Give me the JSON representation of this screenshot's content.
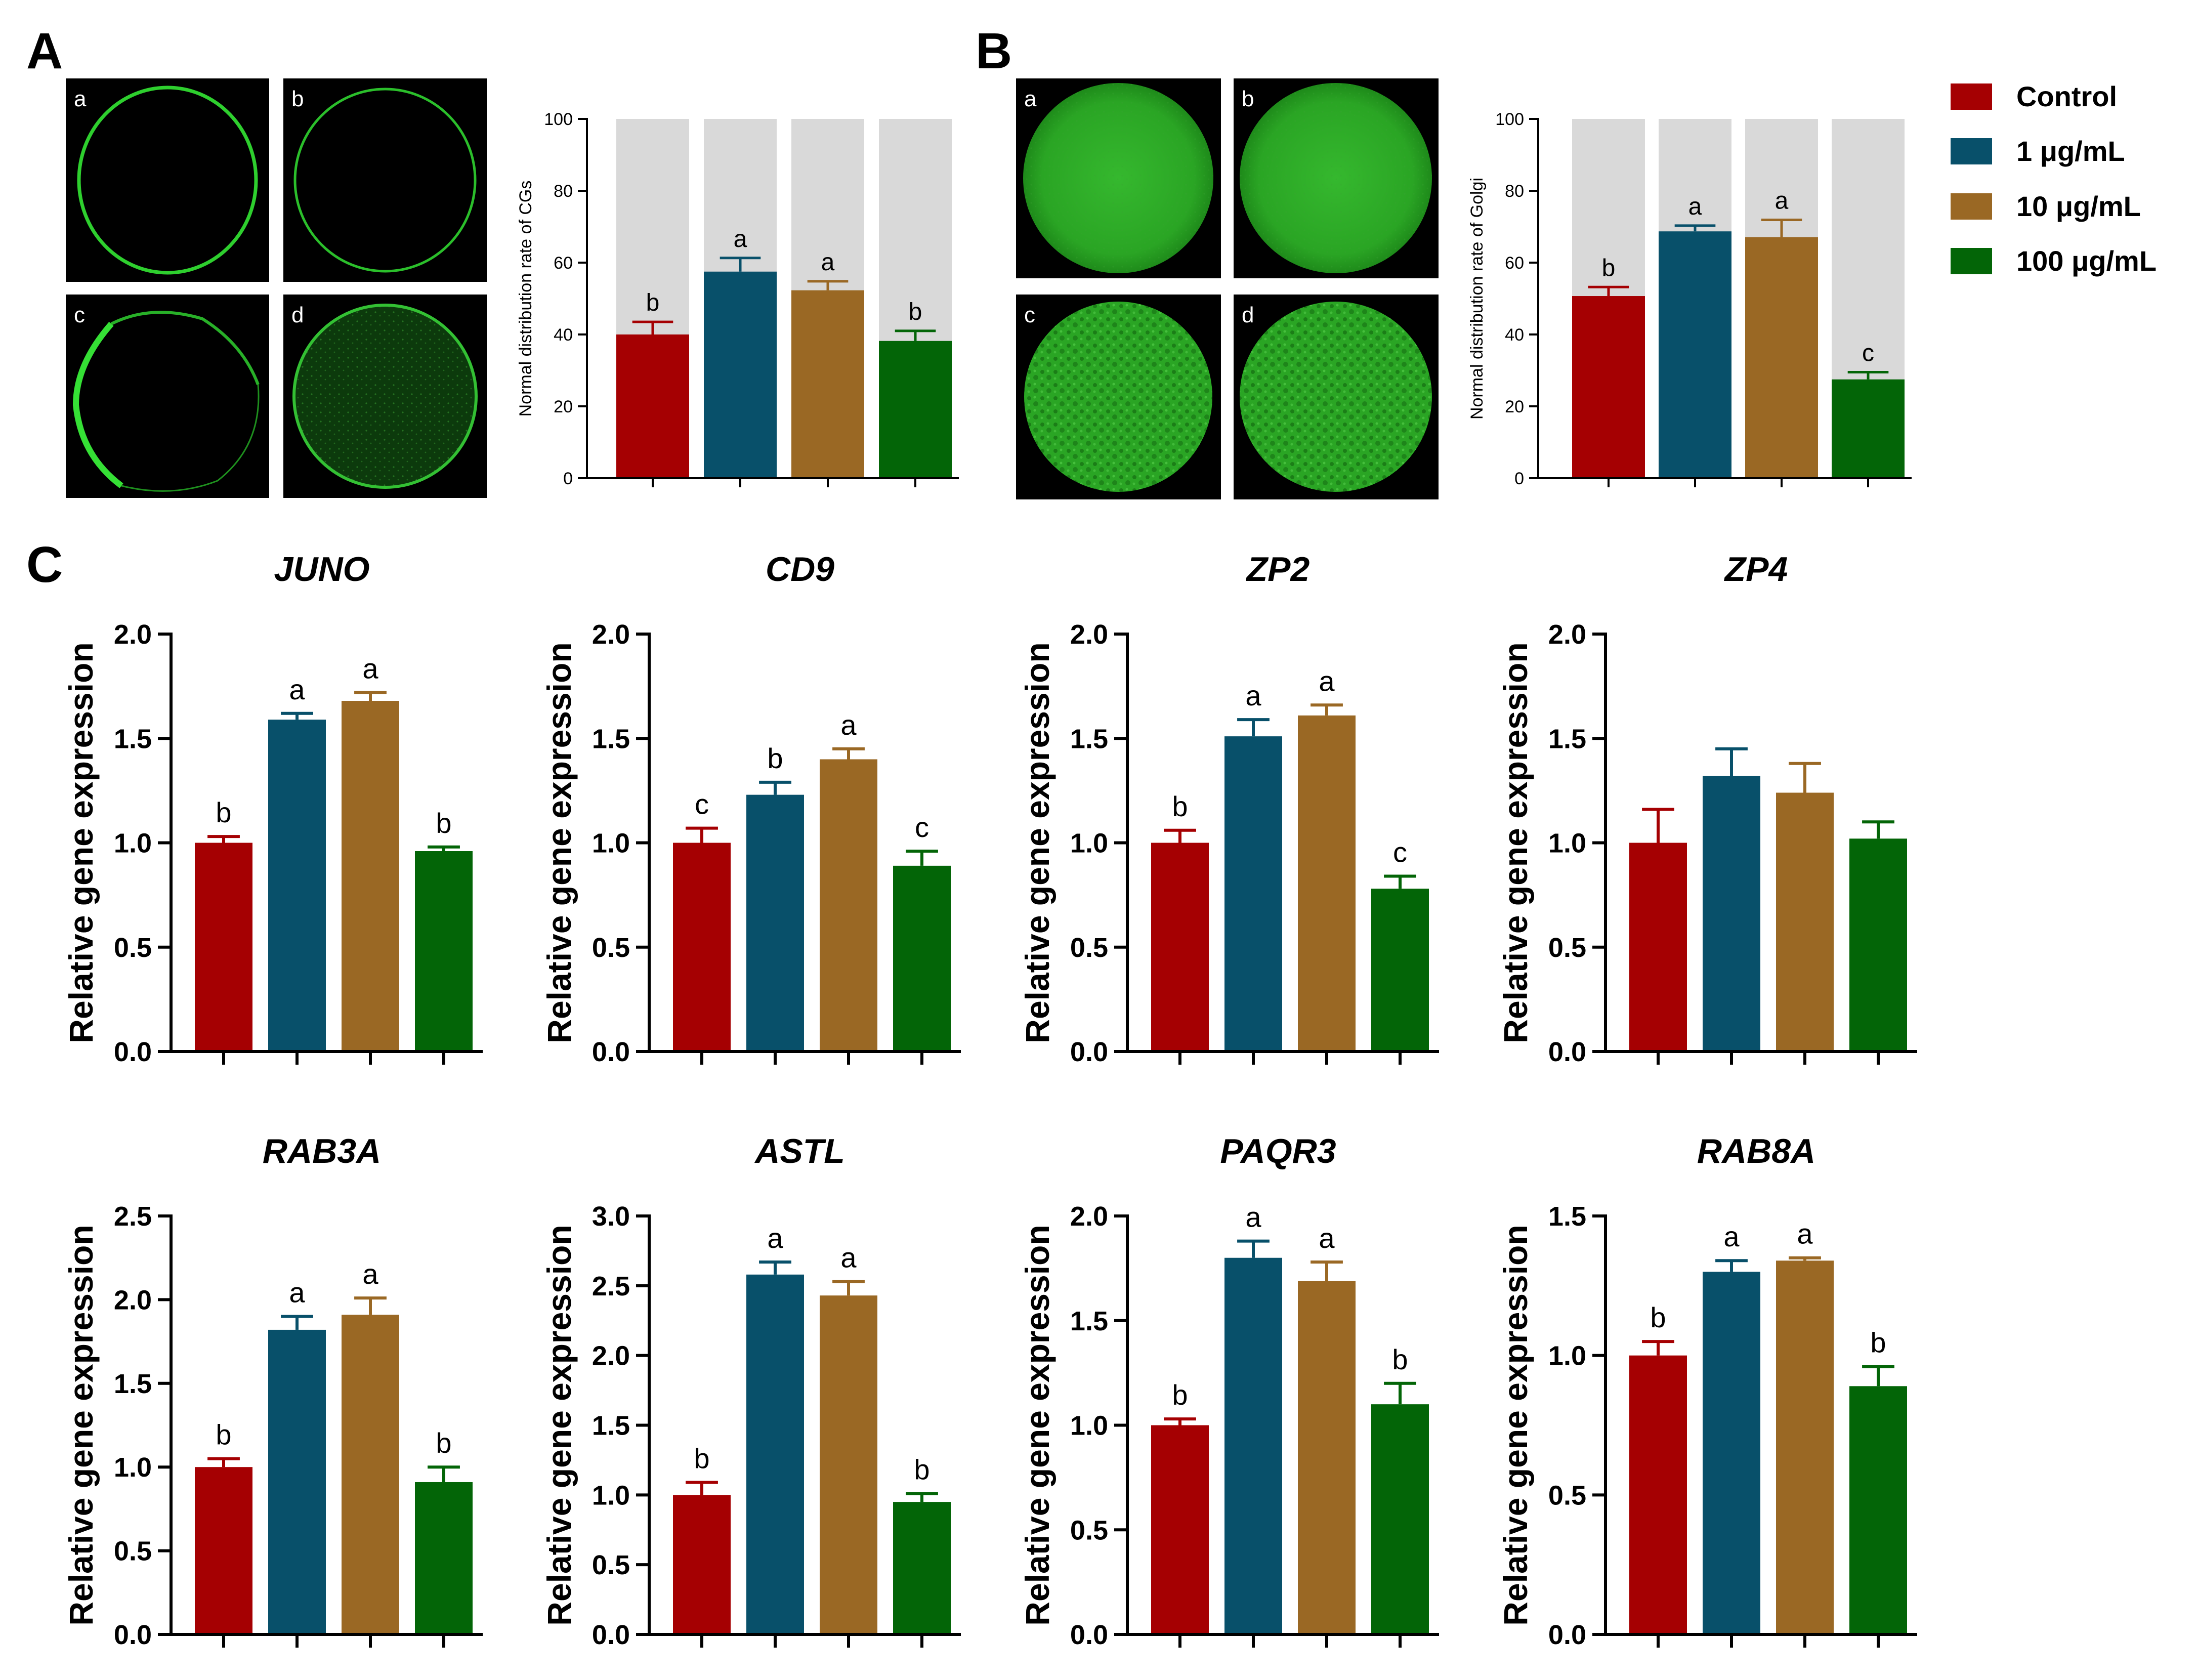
{
  "panels": {
    "a": "A",
    "b": "B",
    "c": "C"
  },
  "image_labels": [
    "a",
    "b",
    "c",
    "d"
  ],
  "legend": [
    {
      "label": "Control",
      "color": "#a50002"
    },
    {
      "label": "1 μg/mL",
      "color": "#08506a"
    },
    {
      "label": "10 μg/mL",
      "color": "#9a6824"
    },
    {
      "label": "100 μg/mL",
      "color": "#036507"
    }
  ],
  "chart_data": [
    {
      "id": "A",
      "type": "bar",
      "title": "",
      "ylabel": "Normal distribution rate of CGs",
      "ylim": [
        0,
        100
      ],
      "yticks": [
        0,
        20,
        40,
        60,
        80,
        100
      ],
      "categories": [
        "Control",
        "1 μg/mL",
        "10 μg/mL",
        "100 μg/mL"
      ],
      "background_to": 100,
      "values": [
        40,
        57.5,
        52.3,
        38.2
      ],
      "errors": [
        3.5,
        3.8,
        2.5,
        2.8
      ],
      "letters": [
        "b",
        "a",
        "a",
        "b"
      ]
    },
    {
      "id": "B",
      "type": "bar",
      "title": "",
      "ylabel": "Normal distribution rate of Golgi",
      "ylim": [
        0,
        100
      ],
      "yticks": [
        0,
        20,
        40,
        60,
        80,
        100
      ],
      "categories": [
        "Control",
        "1 μg/mL",
        "10 μg/mL",
        "100 μg/mL"
      ],
      "background_to": 100,
      "values": [
        50.7,
        68.7,
        67.1,
        27.5
      ],
      "errors": [
        2.5,
        1.6,
        4.8,
        2.0
      ],
      "letters": [
        "b",
        "a",
        "a",
        "c"
      ]
    },
    {
      "id": "JUNO",
      "type": "bar",
      "title": "JUNO",
      "ylabel": "Relative gene expression",
      "ylim": [
        0,
        2.0
      ],
      "yticks": [
        "0.0",
        "0.5",
        "1.0",
        "1.5",
        "2.0"
      ],
      "categories": [
        "Control",
        "1 μg/mL",
        "10 μg/mL",
        "100 μg/mL"
      ],
      "values": [
        1.0,
        1.59,
        1.68,
        0.96
      ],
      "errors": [
        0.03,
        0.03,
        0.04,
        0.02
      ],
      "letters": [
        "b",
        "a",
        "a",
        "b"
      ]
    },
    {
      "id": "CD9",
      "type": "bar",
      "title": "CD9",
      "ylabel": "Relative gene expression",
      "ylim": [
        0,
        2.0
      ],
      "yticks": [
        "0.0",
        "0.5",
        "1.0",
        "1.5",
        "2.0"
      ],
      "categories": [
        "Control",
        "1 μg/mL",
        "10 μg/mL",
        "100 μg/mL"
      ],
      "values": [
        1.0,
        1.23,
        1.4,
        0.89
      ],
      "errors": [
        0.07,
        0.06,
        0.05,
        0.07
      ],
      "letters": [
        "c",
        "b",
        "a",
        "c"
      ]
    },
    {
      "id": "ZP2",
      "type": "bar",
      "title": "ZP2",
      "ylabel": "Relative gene expression",
      "ylim": [
        0,
        2.0
      ],
      "yticks": [
        "0.0",
        "0.5",
        "1.0",
        "1.5",
        "2.0"
      ],
      "categories": [
        "Control",
        "1 μg/mL",
        "10 μg/mL",
        "100 μg/mL"
      ],
      "values": [
        1.0,
        1.51,
        1.61,
        0.78
      ],
      "errors": [
        0.06,
        0.08,
        0.05,
        0.06
      ],
      "letters": [
        "b",
        "a",
        "a",
        "c"
      ]
    },
    {
      "id": "ZP4",
      "type": "bar",
      "title": "ZP4",
      "ylabel": "Relative gene expression",
      "ylim": [
        0,
        2.0
      ],
      "yticks": [
        "0.0",
        "0.5",
        "1.0",
        "1.5",
        "2.0"
      ],
      "categories": [
        "Control",
        "1 μg/mL",
        "10 μg/mL",
        "100 μg/mL"
      ],
      "values": [
        1.0,
        1.32,
        1.24,
        1.02
      ],
      "errors": [
        0.16,
        0.13,
        0.14,
        0.08
      ],
      "letters": [
        "",
        "",
        "",
        ""
      ]
    },
    {
      "id": "RAB3A",
      "type": "bar",
      "title": "RAB3A",
      "ylabel": "Relative gene expression",
      "ylim": [
        0,
        2.5
      ],
      "yticks": [
        "0.0",
        "0.5",
        "1.0",
        "1.5",
        "2.0",
        "2.5"
      ],
      "categories": [
        "Control",
        "1 μg/mL",
        "10 μg/mL",
        "100 μg/mL"
      ],
      "values": [
        1.0,
        1.82,
        1.91,
        0.91
      ],
      "errors": [
        0.05,
        0.08,
        0.1,
        0.09
      ],
      "letters": [
        "b",
        "a",
        "a",
        "b"
      ]
    },
    {
      "id": "ASTL",
      "type": "bar",
      "title": "ASTL",
      "ylabel": "Relative gene expression",
      "ylim": [
        0,
        3.0
      ],
      "yticks": [
        "0.0",
        "0.5",
        "1.0",
        "1.5",
        "2.0",
        "2.5",
        "3.0"
      ],
      "categories": [
        "Control",
        "1 μg/mL",
        "10 μg/mL",
        "100 μg/mL"
      ],
      "values": [
        1.0,
        2.58,
        2.43,
        0.95
      ],
      "errors": [
        0.09,
        0.09,
        0.1,
        0.06
      ],
      "letters": [
        "b",
        "a",
        "a",
        "b"
      ]
    },
    {
      "id": "PAQR3",
      "type": "bar",
      "title": "PAQR3",
      "ylabel": "Relative gene expression",
      "ylim": [
        0,
        2.0
      ],
      "yticks": [
        "0.0",
        "0.5",
        "1.0",
        "1.5",
        "2.0"
      ],
      "categories": [
        "Control",
        "1 μg/mL",
        "10 μg/mL",
        "100 μg/mL"
      ],
      "values": [
        1.0,
        1.8,
        1.69,
        1.1
      ],
      "errors": [
        0.03,
        0.08,
        0.09,
        0.1
      ],
      "letters": [
        "b",
        "a",
        "a",
        "b"
      ]
    },
    {
      "id": "RAB8A",
      "type": "bar",
      "title": "RAB8A",
      "ylabel": "Relative gene expression",
      "ylim": [
        0,
        1.5
      ],
      "yticks": [
        "0.0",
        "0.5",
        "1.0",
        "1.5"
      ],
      "categories": [
        "Control",
        "1 μg/mL",
        "10 μg/mL",
        "100 μg/mL"
      ],
      "values": [
        1.0,
        1.3,
        1.34,
        0.89
      ],
      "errors": [
        0.05,
        0.04,
        0.01,
        0.07
      ],
      "letters": [
        "b",
        "a",
        "a",
        "b"
      ]
    }
  ]
}
